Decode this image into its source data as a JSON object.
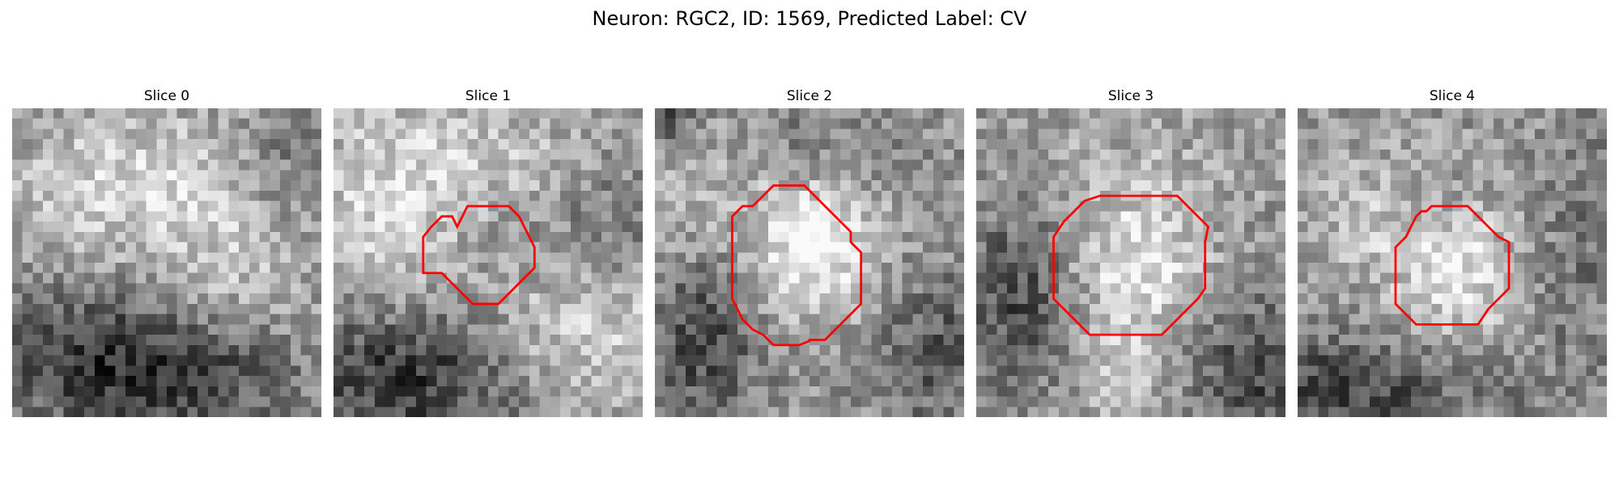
{
  "figure": {
    "title": "Neuron: RGC2, ID: 1569, Predicted Label: CV"
  },
  "panels": [
    {
      "title": "Slice 0",
      "has_outline": false
    },
    {
      "title": "Slice 1",
      "has_outline": true
    },
    {
      "title": "Slice 2",
      "has_outline": true
    },
    {
      "title": "Slice 3",
      "has_outline": true
    },
    {
      "title": "Slice 4",
      "has_outline": true
    }
  ],
  "colors": {
    "outline": "#ff0000",
    "background": "#ffffff"
  }
}
